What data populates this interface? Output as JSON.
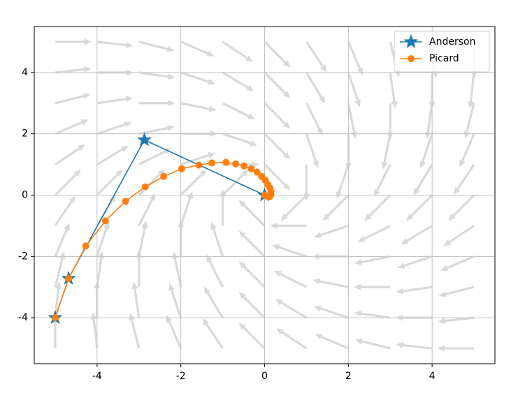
{
  "chart_data": {
    "type": "line",
    "xlim": [
      -5.5,
      5.5
    ],
    "ylim": [
      -5.5,
      5.5
    ],
    "xticks": [
      -4,
      -2,
      0,
      2,
      4
    ],
    "yticks": [
      -4,
      -2,
      0,
      2,
      4
    ],
    "grid": true,
    "legend": "upper right",
    "quiver": {
      "color": "#cccccc",
      "x": [
        -5,
        -4,
        -3,
        -2,
        -1,
        0,
        1,
        2,
        3,
        4,
        5
      ],
      "y": [
        -5,
        -4,
        -3,
        -2,
        -1,
        0,
        1,
        2,
        3,
        4,
        5
      ],
      "u": [
        [
          0,
          -1,
          -2,
          -3,
          -4,
          -5,
          -6,
          -7,
          -8,
          -9,
          -10
        ],
        [
          1,
          0,
          -1,
          -2,
          -3,
          -4,
          -5,
          -6,
          -7,
          -8,
          -9
        ],
        [
          2,
          1,
          0,
          -1,
          -2,
          -3,
          -4,
          -5,
          -6,
          -7,
          -8
        ],
        [
          3,
          2,
          1,
          0,
          -1,
          -2,
          -3,
          -4,
          -5,
          -6,
          -7
        ],
        [
          4,
          3,
          2,
          1,
          0,
          -1,
          -2,
          -3,
          -4,
          -5,
          -6
        ],
        [
          5,
          4,
          3,
          2,
          1,
          0,
          -1,
          -2,
          -3,
          -4,
          -5
        ],
        [
          6,
          5,
          4,
          3,
          2,
          1,
          0,
          -1,
          -2,
          -3,
          -4
        ],
        [
          7,
          6,
          5,
          4,
          3,
          2,
          1,
          0,
          -1,
          -2,
          -3
        ],
        [
          8,
          7,
          6,
          5,
          4,
          3,
          2,
          1,
          0,
          -1,
          -2
        ],
        [
          9,
          8,
          7,
          6,
          5,
          4,
          3,
          2,
          1,
          0,
          -1
        ],
        [
          10,
          9,
          8,
          7,
          6,
          5,
          4,
          3,
          2,
          1,
          0
        ]
      ],
      "v": [
        [
          10,
          9,
          8,
          7,
          6,
          5,
          4,
          3,
          2,
          1,
          0
        ],
        [
          9,
          8,
          7,
          6,
          5,
          4,
          3,
          2,
          1,
          0,
          -1
        ],
        [
          8,
          7,
          6,
          5,
          4,
          3,
          2,
          1,
          0,
          -1,
          -2
        ],
        [
          7,
          6,
          5,
          4,
          3,
          2,
          1,
          0,
          -1,
          -2,
          -3
        ],
        [
          6,
          5,
          4,
          3,
          2,
          1,
          0,
          -1,
          -2,
          -3,
          -4
        ],
        [
          5,
          4,
          3,
          2,
          1,
          0,
          -1,
          -2,
          -3,
          -4,
          -5
        ],
        [
          4,
          3,
          2,
          1,
          0,
          -1,
          -2,
          -3,
          -4,
          -5,
          -6
        ],
        [
          3,
          2,
          1,
          0,
          -1,
          -2,
          -3,
          -4,
          -5,
          -6,
          -7
        ],
        [
          2,
          1,
          0,
          -1,
          -2,
          -3,
          -4,
          -5,
          -6,
          -7,
          -8
        ],
        [
          1,
          0,
          -1,
          -2,
          -3,
          -4,
          -5,
          -6,
          -7,
          -8,
          -9
        ],
        [
          0,
          -1,
          -2,
          -3,
          -4,
          -5,
          -6,
          -7,
          -8,
          -9,
          -10
        ]
      ]
    },
    "series": [
      {
        "name": "Anderson",
        "color": "#1f77b4",
        "marker": "star",
        "x": [
          -5,
          -4.68,
          -2.87,
          0
        ],
        "values": [
          -4,
          -2.72,
          1.8,
          0
        ]
      },
      {
        "name": "Picard",
        "color": "#ff7f0e",
        "marker": "circle",
        "x": [
          -5,
          -4.68,
          -4.27,
          -3.8,
          -3.32,
          -2.85,
          -2.41,
          -1.98,
          -1.57,
          -1.26,
          -0.92,
          -0.69,
          -0.49,
          -0.32,
          -0.18,
          -0.07,
          0.02,
          0.08,
          0.13,
          0.15,
          0.15,
          0.12,
          0.07,
          0.03,
          0
        ],
        "values": [
          -4,
          -2.72,
          -1.66,
          -0.84,
          -0.2,
          0.27,
          0.61,
          0.86,
          0.98,
          1.05,
          1.07,
          1.02,
          0.95,
          0.86,
          0.75,
          0.61,
          0.48,
          0.34,
          0.23,
          0.11,
          0.02,
          -0.05,
          -0.04,
          -0.02,
          0
        ]
      }
    ]
  }
}
